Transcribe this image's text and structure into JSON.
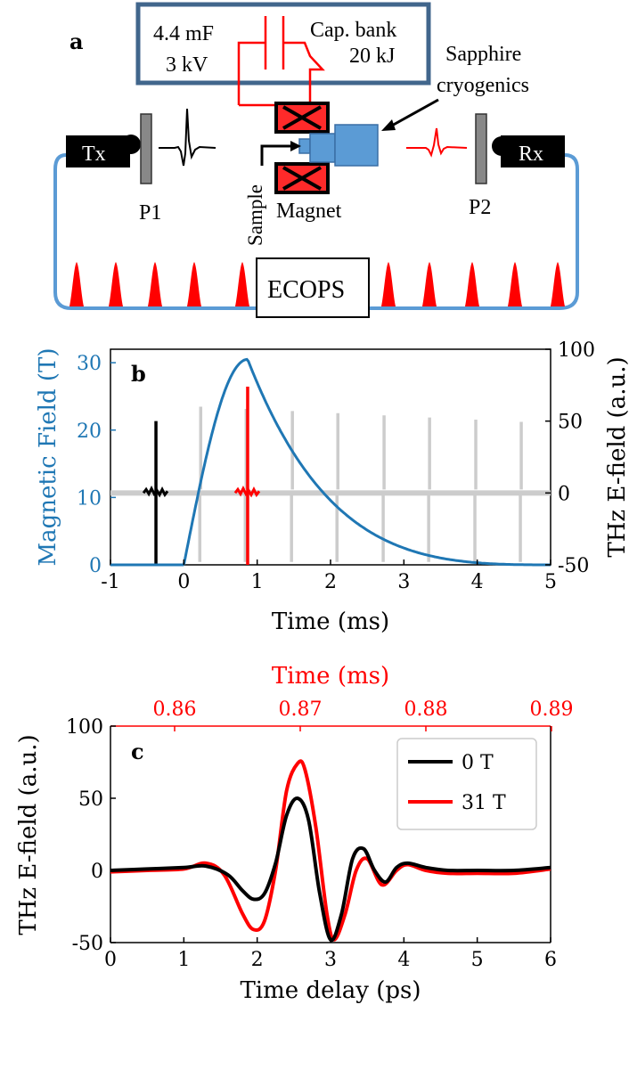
{
  "panels": {
    "a": {
      "label": "a",
      "cap_values": "4.4 mF",
      "cap_voltage": "3 kV",
      "cap_bank": "Cap. bank",
      "cap_energy": "20 kJ",
      "sapphire_1": "Sapphire",
      "sapphire_2": "cryogenics",
      "tx": "Tx",
      "rx": "Rx",
      "p1": "P1",
      "p2": "P2",
      "sample": "Sample",
      "magnet": "Magnet",
      "ecops": "ECOPS"
    },
    "b": {
      "label": "b"
    },
    "c": {
      "label": "c"
    }
  },
  "colors": {
    "blue_field": "#1f77b4",
    "red": "#ff0000",
    "gray": "#cccccc",
    "loop_blue": "#5b9bd5",
    "cap_frame": "#41668c",
    "cryo_blue": "#5b9bd5"
  },
  "chart_data": [
    {
      "id": "b",
      "type": "line",
      "title": "",
      "xlabel": "Time (ms)",
      "ylabel_left": "Magnetic Field (T)",
      "ylabel_right": "THz E-field (a.u.)",
      "xlim": [
        -1,
        5
      ],
      "ylim_left": [
        0,
        32
      ],
      "ylim_right": [
        -50,
        100
      ],
      "x_ticks": [
        "-1",
        "0",
        "1",
        "2",
        "3",
        "4",
        "5"
      ],
      "y_ticks_left": [
        "0",
        "10",
        "20",
        "30"
      ],
      "y_ticks_right": [
        "-50",
        "0",
        "50",
        "100"
      ],
      "field_pulse": {
        "name": "Magnetic field",
        "start_ms": 0.0,
        "peak_ms": 0.87,
        "peak_T": 30.5,
        "end_ms": 5.0
      },
      "pulses": [
        {
          "name": "reference 0 T",
          "time_ms": -0.38,
          "peak": 50,
          "color": "black"
        },
        {
          "name": "peak field 31 T",
          "time_ms": 0.87,
          "peak": 74,
          "color": "red"
        },
        {
          "name": "train",
          "times_ms": [
            0.23,
            0.85,
            1.48,
            2.1,
            2.73,
            3.35,
            3.98,
            4.6
          ],
          "peak": 60,
          "color": "gray"
        }
      ]
    },
    {
      "id": "c",
      "type": "line",
      "title": "",
      "xlabel": "Time delay (ps)",
      "xlabel_top": "Time (ms)",
      "ylabel": "THz E-field (a.u.)",
      "xlim": [
        0,
        6
      ],
      "ylim": [
        -50,
        100
      ],
      "x_ticks": [
        "0",
        "1",
        "2",
        "3",
        "4",
        "5",
        "6"
      ],
      "x_ticks_top": [
        "0.86",
        "0.87",
        "0.88",
        "0.89"
      ],
      "y_ticks": [
        "-50",
        "0",
        "50",
        "100"
      ],
      "legend_position": "top-right",
      "series": [
        {
          "name": "0 T",
          "color": "#000000",
          "x": [
            0,
            0.5,
            1.0,
            1.3,
            1.6,
            1.8,
            1.95,
            2.1,
            2.25,
            2.4,
            2.55,
            2.7,
            2.85,
            3.0,
            3.15,
            3.3,
            3.45,
            3.6,
            3.75,
            3.9,
            4.05,
            4.3,
            4.6,
            5.0,
            5.5,
            6.0
          ],
          "y": [
            0,
            1,
            2,
            3,
            -3,
            -14,
            -20,
            -16,
            5,
            38,
            50,
            35,
            -15,
            -48,
            -30,
            8,
            15,
            0,
            -8,
            2,
            5,
            2,
            0,
            0,
            0,
            2
          ]
        },
        {
          "name": "31 T",
          "color": "#ff0000",
          "x": [
            0,
            0.5,
            1.0,
            1.3,
            1.55,
            1.8,
            1.95,
            2.1,
            2.25,
            2.4,
            2.55,
            2.65,
            2.8,
            2.95,
            3.05,
            3.2,
            3.35,
            3.5,
            3.7,
            3.9,
            4.05,
            4.3,
            4.6,
            5.0,
            5.5,
            6.0
          ],
          "y": [
            -1,
            0,
            1,
            5,
            -3,
            -30,
            -41,
            -35,
            0,
            55,
            74,
            70,
            30,
            -30,
            -48,
            -30,
            0,
            8,
            -10,
            0,
            4,
            0,
            -2,
            -2,
            -2,
            1
          ]
        }
      ]
    }
  ],
  "axes_text": {
    "b": {
      "xlabel": "Time (ms)",
      "ylabel_left": "Magnetic Field (T)",
      "ylabel_right": "THz E-field (a.u.)",
      "x_ticks": [
        "-1",
        "0",
        "1",
        "2",
        "3",
        "4",
        "5"
      ],
      "y_ticks_left": [
        "0",
        "10",
        "20",
        "30"
      ],
      "y_ticks_right": [
        "-50",
        "0",
        "50",
        "100"
      ]
    },
    "c": {
      "xlabel": "Time delay (ps)",
      "xlabel_top": "Time (ms)",
      "ylabel": "THz E-field (a.u.)",
      "x_ticks": [
        "0",
        "1",
        "2",
        "3",
        "4",
        "5",
        "6"
      ],
      "x_ticks_top": [
        "0.86",
        "0.87",
        "0.88",
        "0.89"
      ],
      "y_ticks": [
        "-50",
        "0",
        "50",
        "100"
      ],
      "legend": [
        "0 T",
        "31 T"
      ]
    }
  }
}
